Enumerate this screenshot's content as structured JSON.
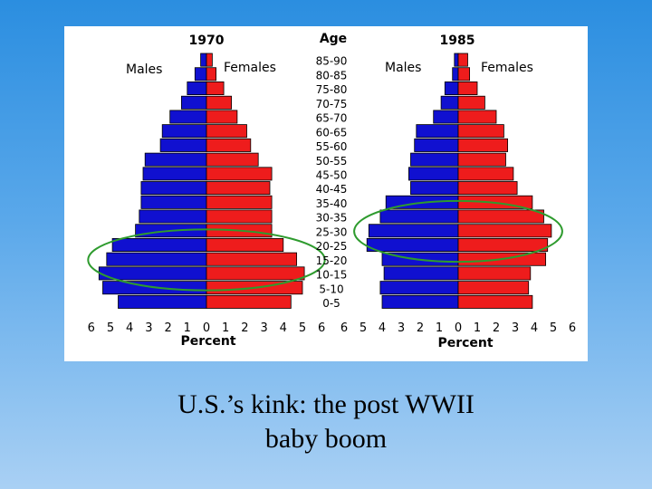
{
  "caption": {
    "line1": "U.S.’s kink: the post WWII",
    "line2": "baby boom"
  },
  "colors": {
    "males": "#1010d0",
    "females": "#ee1c1c",
    "outline": "#000000",
    "ellipse": "#2e9b2e",
    "background_top": "#2b8ee0",
    "background_bottom": "#a9d0f4"
  },
  "chart_data": {
    "type": "population-pyramid",
    "age_axis_title": "Age",
    "age_groups": [
      "85-90",
      "80-85",
      "75-80",
      "70-75",
      "65-70",
      "60-65",
      "55-60",
      "50-55",
      "45-50",
      "40-45",
      "35-40",
      "30-35",
      "25-30",
      "20-25",
      "15-20",
      "10-15",
      "5-10",
      "0-5"
    ],
    "x_ticks": [
      "6",
      "5",
      "4",
      "3",
      "2",
      "1",
      "0",
      "1",
      "2",
      "3",
      "4",
      "5",
      "6"
    ],
    "xlim": [
      0,
      6
    ],
    "panels": [
      {
        "title": "1970",
        "xlabel": "Percent",
        "males_label": "Males",
        "females_label": "Females",
        "males": [
          0.3,
          0.6,
          1.0,
          1.3,
          1.9,
          2.3,
          2.4,
          3.2,
          3.3,
          3.4,
          3.4,
          3.5,
          3.7,
          4.9,
          5.2,
          5.6,
          5.4,
          4.6
        ],
        "females": [
          0.3,
          0.5,
          0.9,
          1.3,
          1.6,
          2.1,
          2.3,
          2.7,
          3.4,
          3.3,
          3.4,
          3.4,
          3.4,
          4.0,
          4.7,
          5.1,
          5.0,
          4.4
        ],
        "highlight": {
          "from": "20-25",
          "to": "10-15"
        }
      },
      {
        "title": "1985",
        "xlabel": "Percent",
        "males_label": "Males",
        "females_label": "Females",
        "males": [
          0.2,
          0.3,
          0.7,
          0.9,
          1.3,
          2.2,
          2.3,
          2.5,
          2.6,
          2.5,
          3.8,
          4.1,
          4.7,
          4.8,
          4.0,
          3.9,
          4.1,
          4.0
        ],
        "females": [
          0.5,
          0.6,
          1.0,
          1.4,
          2.0,
          2.4,
          2.6,
          2.5,
          2.9,
          3.1,
          3.9,
          4.5,
          4.9,
          4.7,
          4.6,
          3.8,
          3.7,
          3.9
        ],
        "highlight": {
          "from": "30-35",
          "to": "20-25"
        }
      }
    ]
  }
}
